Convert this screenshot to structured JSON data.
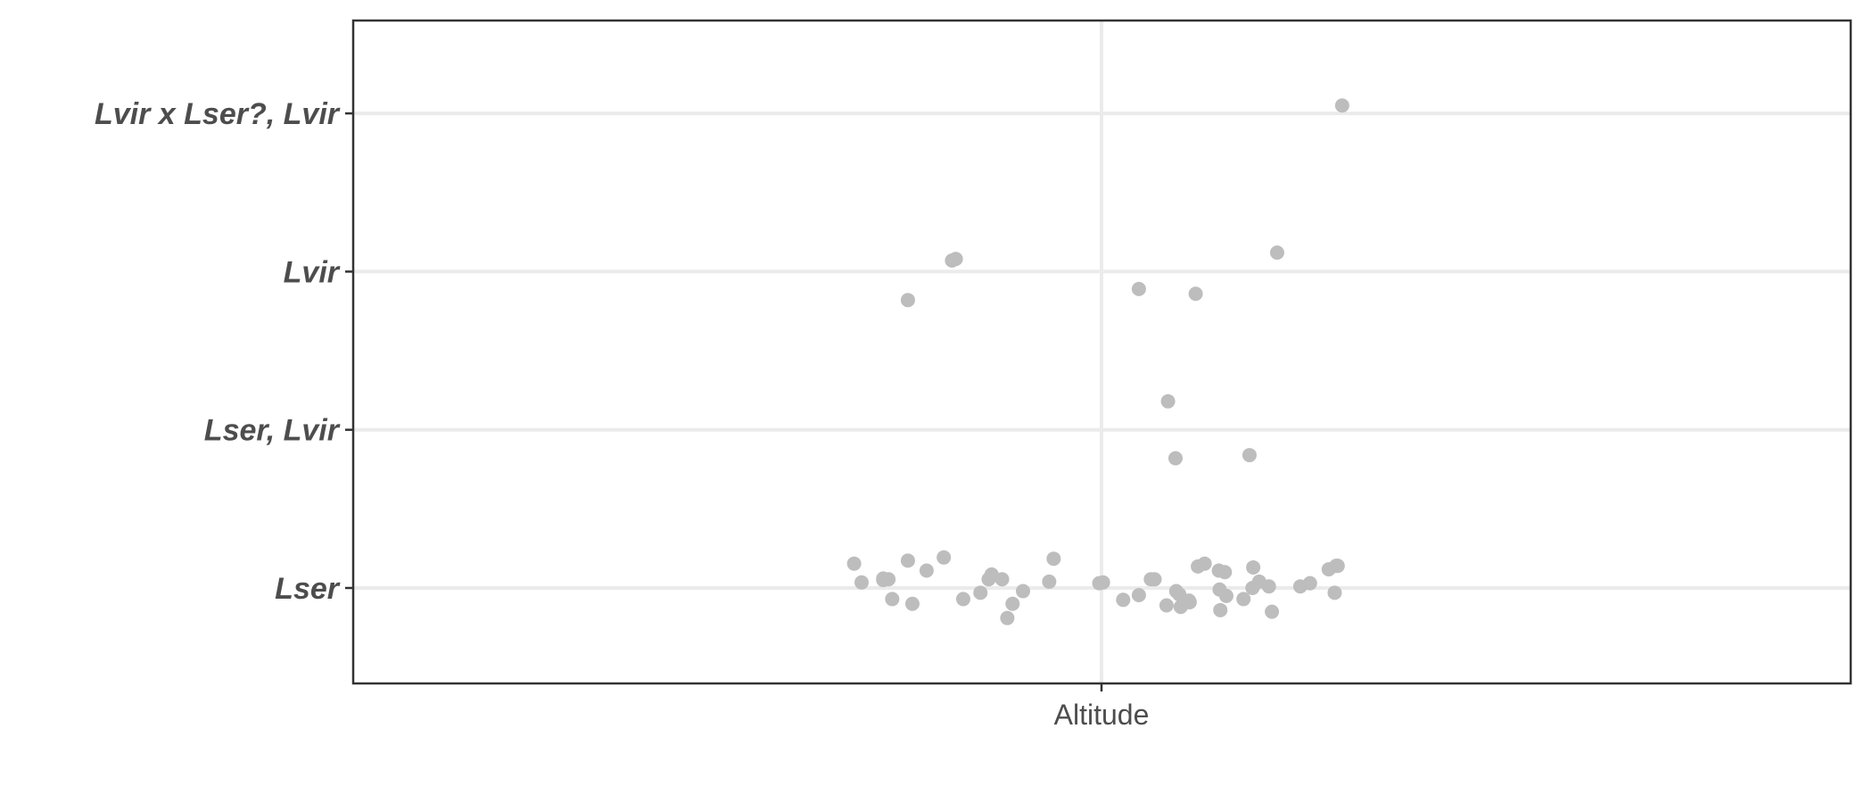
{
  "chart_data": {
    "type": "scatter",
    "title": "",
    "xlabel": "",
    "ylabel": "",
    "x_categories": [
      "Altitude"
    ],
    "y_categories": [
      "Lser",
      "Lser, Lvir",
      "Lvir",
      "Lvir x Lser?, Lvir"
    ],
    "grid": true,
    "legend": "none",
    "colors": {
      "point": "#bdbdbd",
      "grid": "#ebebeb",
      "axis": "#333333",
      "tick_text": "#4d4d4d"
    },
    "x_offset_range": [
      -0.5,
      0.5
    ],
    "points": [
      {
        "x": -0.331,
        "y": 1.154
      },
      {
        "x": -0.321,
        "y": 1.035
      },
      {
        "x": -0.292,
        "y": 1.06
      },
      {
        "x": -0.292,
        "y": 1.05
      },
      {
        "x": -0.285,
        "y": 1.055
      },
      {
        "x": -0.28,
        "y": 0.93
      },
      {
        "x": -0.259,
        "y": 1.173
      },
      {
        "x": -0.253,
        "y": 0.9
      },
      {
        "x": -0.234,
        "y": 1.11
      },
      {
        "x": -0.211,
        "y": 1.193
      },
      {
        "x": -0.185,
        "y": 0.93
      },
      {
        "x": -0.162,
        "y": 0.97
      },
      {
        "x": -0.151,
        "y": 1.055
      },
      {
        "x": -0.147,
        "y": 1.085
      },
      {
        "x": -0.133,
        "y": 1.055
      },
      {
        "x": -0.126,
        "y": 0.81
      },
      {
        "x": -0.119,
        "y": 0.9
      },
      {
        "x": -0.105,
        "y": 0.98
      },
      {
        "x": -0.07,
        "y": 1.04
      },
      {
        "x": -0.064,
        "y": 1.185
      },
      {
        "x": -0.003,
        "y": 1.03
      },
      {
        "x": 0.002,
        "y": 1.035
      },
      {
        "x": 0.029,
        "y": 0.925
      },
      {
        "x": 0.05,
        "y": 0.955
      },
      {
        "x": 0.066,
        "y": 1.055
      },
      {
        "x": 0.071,
        "y": 1.055
      },
      {
        "x": 0.087,
        "y": 0.89
      },
      {
        "x": 0.1,
        "y": 0.98
      },
      {
        "x": 0.104,
        "y": 0.96
      },
      {
        "x": 0.106,
        "y": 0.88
      },
      {
        "x": 0.117,
        "y": 0.92
      },
      {
        "x": 0.118,
        "y": 0.91
      },
      {
        "x": 0.129,
        "y": 1.136
      },
      {
        "x": 0.138,
        "y": 1.154
      },
      {
        "x": 0.157,
        "y": 1.11
      },
      {
        "x": 0.158,
        "y": 0.99
      },
      {
        "x": 0.159,
        "y": 0.86
      },
      {
        "x": 0.165,
        "y": 1.1
      },
      {
        "x": 0.167,
        "y": 0.95
      },
      {
        "x": 0.19,
        "y": 0.93
      },
      {
        "x": 0.202,
        "y": 1.0
      },
      {
        "x": 0.203,
        "y": 1.13
      },
      {
        "x": 0.211,
        "y": 1.04
      },
      {
        "x": 0.224,
        "y": 1.01
      },
      {
        "x": 0.228,
        "y": 0.85
      },
      {
        "x": 0.266,
        "y": 1.01
      },
      {
        "x": 0.279,
        "y": 1.03
      },
      {
        "x": 0.304,
        "y": 1.118
      },
      {
        "x": 0.312,
        "y": 0.97
      },
      {
        "x": 0.314,
        "y": 1.14
      },
      {
        "x": 0.316,
        "y": 1.14
      },
      {
        "x": 0.089,
        "y": 2.18
      },
      {
        "x": 0.198,
        "y": 1.84
      },
      {
        "x": 0.099,
        "y": 1.82
      },
      {
        "x": -0.259,
        "y": 2.82
      },
      {
        "x": -0.2,
        "y": 3.07
      },
      {
        "x": -0.195,
        "y": 3.08
      },
      {
        "x": 0.05,
        "y": 2.89
      },
      {
        "x": 0.126,
        "y": 2.86
      },
      {
        "x": 0.235,
        "y": 3.12
      },
      {
        "x": 0.322,
        "y": 4.05
      }
    ]
  }
}
